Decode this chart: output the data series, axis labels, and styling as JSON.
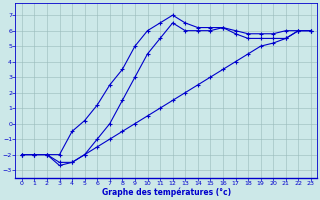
{
  "xlabel": "Graphe des températures (°c)",
  "xlim": [
    -0.5,
    23.5
  ],
  "ylim": [
    -3.5,
    7.8
  ],
  "yticks": [
    -3,
    -2,
    -1,
    0,
    1,
    2,
    3,
    4,
    5,
    6,
    7
  ],
  "xticks": [
    0,
    1,
    2,
    3,
    4,
    5,
    6,
    7,
    8,
    9,
    10,
    11,
    12,
    13,
    14,
    15,
    16,
    17,
    18,
    19,
    20,
    21,
    22,
    23
  ],
  "bg_color": "#cce8e8",
  "line_color": "#0000cc",
  "grid_color": "#99bbbb",
  "curve1_x": [
    0,
    1,
    2,
    3,
    4,
    5,
    6,
    7,
    8,
    9,
    10,
    11,
    12,
    13,
    14,
    15,
    16,
    17,
    18,
    19,
    20,
    21,
    22,
    23
  ],
  "curve1_y": [
    -2,
    -2,
    -2,
    -2.5,
    -2.5,
    -2,
    -1.5,
    -1,
    -0.5,
    0,
    0.5,
    1,
    1.5,
    2,
    2.5,
    3,
    3.5,
    4,
    4.5,
    5,
    5.2,
    5.5,
    6,
    6
  ],
  "curve2_x": [
    0,
    1,
    2,
    3,
    4,
    5,
    6,
    7,
    8,
    9,
    10,
    11,
    12,
    13,
    14,
    15,
    16,
    17,
    18,
    19,
    20,
    21,
    22,
    23
  ],
  "curve2_y": [
    -2,
    -2,
    -2,
    -2.7,
    -2.5,
    -2,
    -1,
    0,
    1.5,
    3,
    4.5,
    5.5,
    6.5,
    6,
    6,
    6,
    6.2,
    5.8,
    5.5,
    5.5,
    5.5,
    5.5,
    6,
    6
  ],
  "curve3_x": [
    0,
    1,
    2,
    3,
    4,
    5,
    6,
    7,
    8,
    9,
    10,
    11,
    12,
    13,
    14,
    15,
    16,
    17,
    18,
    19,
    20,
    21,
    22,
    23
  ],
  "curve3_y": [
    -2,
    -2,
    -2,
    -2,
    -0.5,
    0.2,
    1.2,
    2.5,
    3.5,
    5,
    6,
    6.5,
    7,
    6.5,
    6.2,
    6.2,
    6.2,
    6,
    5.8,
    5.8,
    5.8,
    6,
    6,
    6
  ]
}
